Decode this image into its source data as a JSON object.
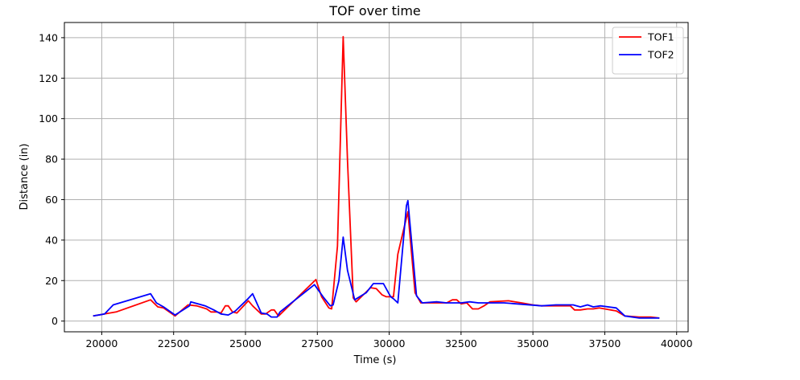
{
  "chart_data": {
    "type": "line",
    "title": "TOF over time",
    "xlabel": "Time (s)",
    "ylabel": "Distance (in)",
    "xlim": [
      18700,
      40400
    ],
    "ylim": [
      -5.3,
      147.5
    ],
    "grid": true,
    "legend_position": "top-right",
    "x_ticks": [
      20000,
      22500,
      25000,
      27500,
      30000,
      32500,
      35000,
      37500,
      40000
    ],
    "x_tick_labels": [
      "20000",
      "22500",
      "25000",
      "27500",
      "30000",
      "32500",
      "35000",
      "37500",
      "40000"
    ],
    "y_ticks": [
      0,
      20,
      40,
      60,
      80,
      100,
      120,
      140
    ],
    "y_tick_labels": [
      "0",
      "20",
      "40",
      "60",
      "80",
      "100",
      "120",
      "140"
    ],
    "series": [
      {
        "name": "TOF1",
        "color": "#ff0000",
        "x": [
          19700,
          20100,
          20500,
          21700,
          21950,
          22150,
          22550,
          23000,
          23300,
          23650,
          23800,
          24000,
          24150,
          24300,
          24400,
          24550,
          24700,
          25100,
          25250,
          25550,
          25700,
          25900,
          26000,
          26150,
          27450,
          27650,
          27900,
          28000,
          28200,
          28400,
          28550,
          28750,
          28850,
          29350,
          29550,
          29750,
          29900,
          30150,
          30300,
          30450,
          30650,
          30900,
          31100,
          31400,
          31700,
          32000,
          32200,
          32350,
          32500,
          32700,
          32900,
          33100,
          33300,
          33500,
          34150,
          34600,
          35000,
          35300,
          35800,
          36300,
          36450,
          36650,
          36900,
          37100,
          37300,
          37500,
          37900,
          38200,
          38700,
          39100,
          39400
        ],
        "y": [
          2.5,
          3.5,
          4.5,
          10.5,
          7.0,
          6.5,
          2.5,
          8.0,
          7.5,
          6.0,
          4.5,
          4.5,
          4.0,
          7.5,
          7.5,
          4.5,
          4.0,
          10.0,
          7.5,
          3.5,
          3.5,
          5.5,
          5.5,
          2.5,
          20.5,
          12.0,
          6.5,
          6.0,
          37.0,
          140.5,
          79.0,
          11.5,
          9.5,
          16.5,
          16.0,
          13.0,
          12.0,
          12.0,
          33.0,
          42.0,
          54.0,
          14.0,
          9.0,
          9.0,
          9.0,
          9.0,
          10.5,
          10.5,
          8.5,
          9.0,
          6.0,
          6.0,
          7.5,
          9.5,
          10.0,
          9.0,
          8.0,
          7.5,
          7.5,
          7.5,
          5.5,
          5.5,
          6.0,
          6.0,
          6.5,
          6.0,
          5.0,
          2.5,
          2.0,
          2.0,
          1.5
        ]
      },
      {
        "name": "TOF2",
        "color": "#0000ff",
        "x": [
          19700,
          20100,
          20400,
          21700,
          21900,
          22150,
          22550,
          23050,
          23100,
          23600,
          23900,
          24150,
          24400,
          24650,
          25050,
          25250,
          25550,
          25750,
          25900,
          26100,
          26200,
          27400,
          27700,
          27950,
          28050,
          28250,
          28400,
          28550,
          28800,
          29200,
          29450,
          29800,
          30050,
          30150,
          30300,
          30600,
          30650,
          30950,
          31150,
          31650,
          32000,
          32500,
          32800,
          33100,
          34000,
          35300,
          35800,
          36100,
          36400,
          36650,
          36900,
          37100,
          37350,
          37900,
          38200,
          38700,
          39100,
          39400
        ],
        "y": [
          2.5,
          3.5,
          8.0,
          13.5,
          9.0,
          7.0,
          3.0,
          7.5,
          9.5,
          7.5,
          5.5,
          3.5,
          3.0,
          5.0,
          10.5,
          13.5,
          4.0,
          3.5,
          2.0,
          2.0,
          4.5,
          18.0,
          12.0,
          7.5,
          8.0,
          20.0,
          41.5,
          25.0,
          10.5,
          14.0,
          18.5,
          18.5,
          12.0,
          11.0,
          9.0,
          57.0,
          59.5,
          12.5,
          9.0,
          9.5,
          9.0,
          9.0,
          9.5,
          9.0,
          9.0,
          7.5,
          8.0,
          8.0,
          8.0,
          7.0,
          8.0,
          7.0,
          7.5,
          6.5,
          2.5,
          1.5,
          1.5,
          1.5
        ]
      }
    ]
  }
}
